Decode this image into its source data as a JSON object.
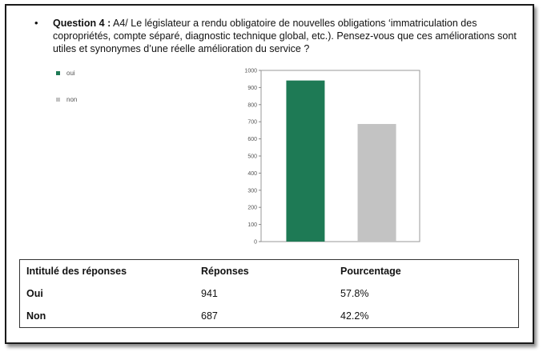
{
  "question": {
    "bullet": "•",
    "label": "Question 4 :",
    "text": " A4/ Le législateur a rendu obligatoire de nouvelles obligations ‘immatriculation des copropriétés, compte séparé, diagnostic technique global, etc.). Pensez-vous que ces améliorations sont utiles et synonymes d’une réelle amélioration  du service ?"
  },
  "chart_data": {
    "type": "bar",
    "categories": [
      "oui",
      "non"
    ],
    "values": [
      941,
      687
    ],
    "colors": [
      "#1e7a55",
      "#c3c3c3"
    ],
    "ylim": [
      0,
      1000
    ],
    "yticks": [
      0,
      100,
      200,
      300,
      400,
      500,
      600,
      700,
      800,
      900,
      1000
    ],
    "legend": [
      "oui",
      "non"
    ],
    "legend_placement": "left",
    "grid": false
  },
  "table": {
    "headers": [
      "Intitulé des réponses",
      "Réponses",
      "Pourcentage"
    ],
    "rows": [
      [
        "Oui",
        "941",
        "57.8%"
      ],
      [
        "Non",
        "687",
        "42.2%"
      ]
    ]
  }
}
